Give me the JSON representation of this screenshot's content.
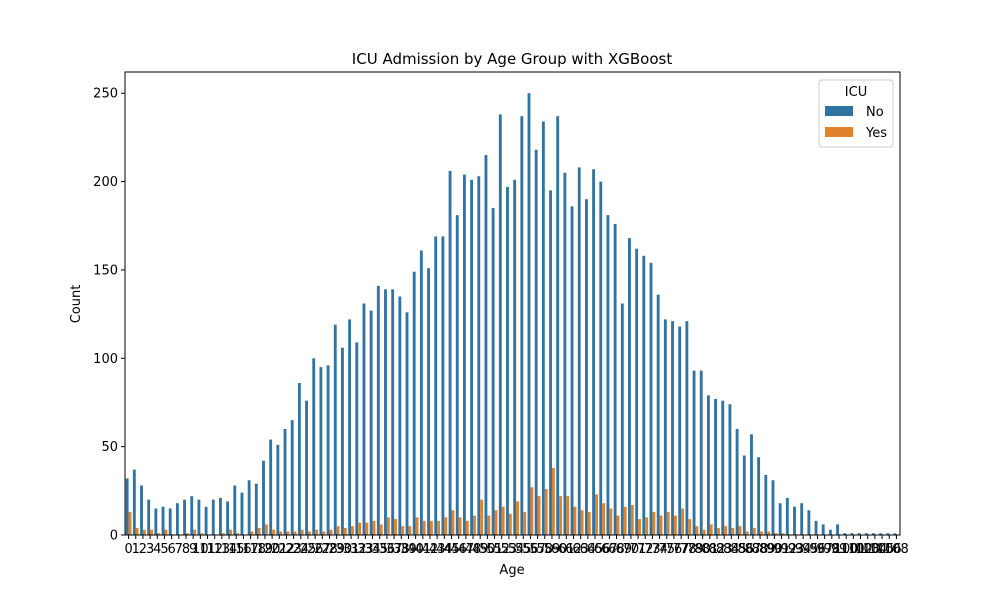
{
  "chart_data": {
    "type": "bar",
    "title": "ICU Admission by Age Group with XGBoost",
    "xlabel": "Age",
    "ylabel": "Count",
    "ylim": [
      0,
      262
    ],
    "yticks": [
      0,
      50,
      100,
      150,
      200,
      250
    ],
    "categories": [
      "0",
      "1",
      "2",
      "3",
      "4",
      "5",
      "6",
      "7",
      "8",
      "9",
      "10",
      "11",
      "12",
      "13",
      "14",
      "15",
      "16",
      "17",
      "18",
      "19",
      "20",
      "21",
      "22",
      "23",
      "24",
      "25",
      "26",
      "27",
      "28",
      "29",
      "30",
      "31",
      "32",
      "33",
      "34",
      "35",
      "36",
      "37",
      "38",
      "39",
      "40",
      "41",
      "42",
      "43",
      "44",
      "45",
      "46",
      "47",
      "48",
      "49",
      "50",
      "51",
      "52",
      "53",
      "54",
      "55",
      "56",
      "57",
      "58",
      "59",
      "60",
      "61",
      "62",
      "63",
      "64",
      "65",
      "66",
      "67",
      "68",
      "69",
      "70",
      "71",
      "72",
      "73",
      "74",
      "75",
      "76",
      "77",
      "78",
      "79",
      "80",
      "81",
      "82",
      "83",
      "84",
      "85",
      "86",
      "87",
      "88",
      "89",
      "90",
      "91",
      "92",
      "93",
      "94",
      "95",
      "96",
      "97",
      "98",
      "99",
      "100",
      "101",
      "102",
      "103",
      "104",
      "105",
      "106",
      "108"
    ],
    "series": [
      {
        "name": "No",
        "color": "#3274a1",
        "values": [
          32,
          37,
          28,
          20,
          15,
          16,
          15,
          18,
          20,
          22,
          20,
          16,
          20,
          21,
          19,
          28,
          24,
          31,
          29,
          42,
          54,
          51,
          60,
          65,
          86,
          76,
          100,
          95,
          96,
          119,
          106,
          122,
          109,
          131,
          127,
          141,
          139,
          139,
          135,
          126,
          149,
          161,
          151,
          169,
          169,
          206,
          181,
          204,
          201,
          203,
          215,
          185,
          238,
          197,
          201,
          237,
          250,
          218,
          234,
          195,
          237,
          205,
          186,
          208,
          190,
          207,
          200,
          181,
          176,
          131,
          168,
          162,
          158,
          154,
          136,
          122,
          121,
          118,
          121,
          93,
          93,
          79,
          77,
          76,
          74,
          60,
          45,
          57,
          44,
          34,
          31,
          18,
          21,
          16,
          18,
          14,
          8,
          6,
          3,
          6,
          1,
          1,
          1,
          1,
          1,
          1,
          1,
          1
        ]
      },
      {
        "name": "Yes",
        "color": "#e1812c",
        "values": [
          13,
          4,
          3,
          3,
          1,
          3,
          0,
          0,
          1,
          3,
          1,
          0,
          0,
          1,
          3,
          1,
          0,
          2,
          4,
          6,
          3,
          2,
          2,
          2,
          3,
          2,
          3,
          2,
          3,
          5,
          4,
          5,
          7,
          7,
          8,
          6,
          10,
          9,
          5,
          5,
          10,
          8,
          8,
          8,
          10,
          14,
          10,
          8,
          11,
          20,
          11,
          14,
          16,
          12,
          19,
          13,
          27,
          22,
          26,
          38,
          22,
          22,
          16,
          14,
          13,
          23,
          18,
          15,
          11,
          16,
          17,
          9,
          10,
          13,
          11,
          13,
          11,
          15,
          9,
          5,
          3,
          6,
          4,
          5,
          4,
          5,
          2,
          4,
          2,
          2,
          1,
          1,
          0,
          0,
          0,
          0,
          0,
          0,
          0,
          0,
          0,
          0,
          0,
          0,
          0,
          0,
          0,
          0
        ]
      }
    ],
    "legend": {
      "title": "ICU",
      "position": "top-right",
      "entries": [
        "No",
        "Yes"
      ]
    }
  }
}
